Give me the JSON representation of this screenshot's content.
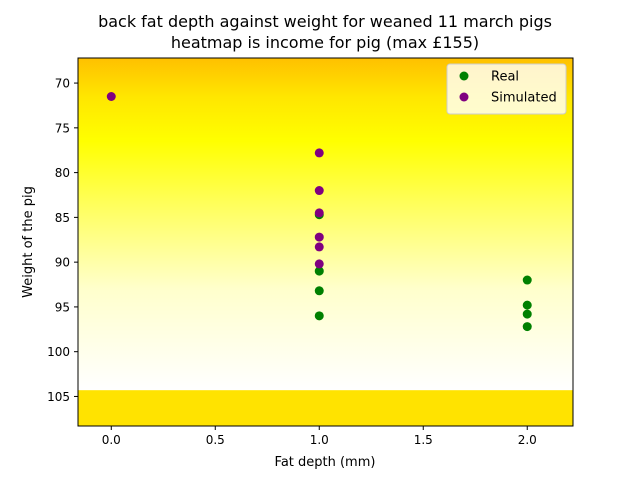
{
  "chart_data": {
    "type": "scatter",
    "title": "back fat depth against weight for weaned 11 march pigs",
    "subtitle": "heatmap is income for pig (max £155)",
    "xlabel": "Fat depth (mm)",
    "ylabel": "Weight of the pig",
    "xlim": [
      -0.16,
      2.22
    ],
    "ylim": [
      108.3,
      67.2
    ],
    "y_inverted": true,
    "xticks": [
      0.0,
      0.5,
      1.0,
      1.5,
      2.0
    ],
    "xtick_labels": [
      "0.0",
      "0.5",
      "1.0",
      "1.5",
      "2.0"
    ],
    "yticks": [
      70,
      75,
      80,
      85,
      90,
      95,
      100,
      105
    ],
    "ytick_labels": [
      "70",
      "75",
      "80",
      "85",
      "90",
      "95",
      "100",
      "105"
    ],
    "grid": false,
    "legend": "top-right",
    "heatmap": {
      "quantity": "income for pig",
      "bands": [
        {
          "weight": 67.2,
          "color": "#ffc000"
        },
        {
          "weight": 71.5,
          "color": "#ffe600"
        },
        {
          "weight": 76.5,
          "color": "#ffff00"
        },
        {
          "weight": 83.0,
          "color": "#ffff55"
        },
        {
          "weight": 93.0,
          "color": "#ffffcc"
        },
        {
          "weight": 104.3,
          "color": "#ffffff"
        }
      ],
      "bottom_band": {
        "from_weight": 104.3,
        "to_weight": 108.3,
        "color": "#ffe300"
      }
    },
    "series": [
      {
        "name": "Real",
        "color": "#008000",
        "points": [
          {
            "x": 1.0,
            "y": 84.7
          },
          {
            "x": 1.0,
            "y": 91.0
          },
          {
            "x": 1.0,
            "y": 93.2
          },
          {
            "x": 1.0,
            "y": 96.0
          },
          {
            "x": 2.0,
            "y": 92.0
          },
          {
            "x": 2.0,
            "y": 94.8
          },
          {
            "x": 2.0,
            "y": 95.8
          },
          {
            "x": 2.0,
            "y": 97.2
          }
        ]
      },
      {
        "name": "Simulated",
        "color": "#800080",
        "points": [
          {
            "x": 0.0,
            "y": 71.5
          },
          {
            "x": 1.0,
            "y": 77.8
          },
          {
            "x": 1.0,
            "y": 82.0
          },
          {
            "x": 1.0,
            "y": 84.5
          },
          {
            "x": 1.0,
            "y": 87.2
          },
          {
            "x": 1.0,
            "y": 88.3
          },
          {
            "x": 1.0,
            "y": 90.2
          }
        ]
      }
    ]
  }
}
